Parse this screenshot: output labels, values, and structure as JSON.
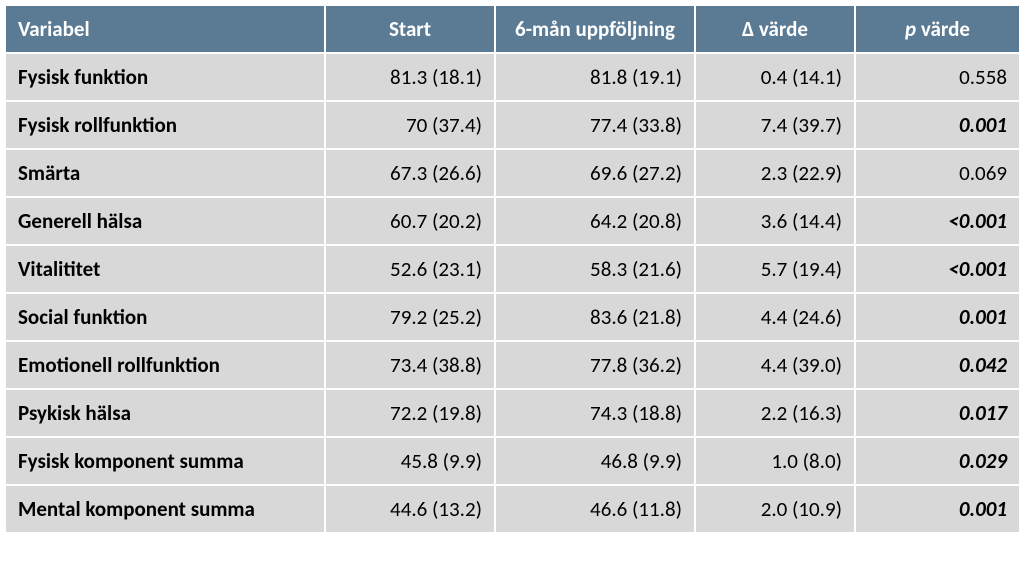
{
  "table": {
    "headers": {
      "variable": "Variabel",
      "start": "Start",
      "followup": "6-mån uppföljning",
      "delta": "Δ värde",
      "pvalue_prefix": "p",
      "pvalue_suffix": " värde"
    },
    "rows": [
      {
        "variable": "Fysisk funktion",
        "start": "81.3 (18.1)",
        "followup": "81.8 (19.1)",
        "delta": "0.4 (14.1)",
        "pvalue": "0.558",
        "pbold": false
      },
      {
        "variable": "Fysisk rollfunktion",
        "start": "70 (37.4)",
        "followup": "77.4 (33.8)",
        "delta": "7.4 (39.7)",
        "pvalue": "0.001",
        "pbold": true
      },
      {
        "variable": "Smärta",
        "start": "67.3 (26.6)",
        "followup": "69.6 (27.2)",
        "delta": "2.3 (22.9)",
        "pvalue": "0.069",
        "pbold": false
      },
      {
        "variable": "Generell hälsa",
        "start": "60.7 (20.2)",
        "followup": "64.2 (20.8)",
        "delta": "3.6 (14.4)",
        "pvalue": "<0.001",
        "pbold": true
      },
      {
        "variable": "Vitalititet",
        "start": "52.6 (23.1)",
        "followup": "58.3 (21.6)",
        "delta": "5.7 (19.4)",
        "pvalue": "<0.001",
        "pbold": true
      },
      {
        "variable": "Social funktion",
        "start": "79.2 (25.2)",
        "followup": "83.6 (21.8)",
        "delta": "4.4 (24.6)",
        "pvalue": "0.001",
        "pbold": true
      },
      {
        "variable": "Emotionell rollfunktion",
        "start": "73.4 (38.8)",
        "followup": "77.8 (36.2)",
        "delta": "4.4 (39.0)",
        "pvalue": "0.042",
        "pbold": true
      },
      {
        "variable": "Psykisk hälsa",
        "start": "72.2 (19.8)",
        "followup": "74.3 (18.8)",
        "delta": "2.2 (16.3)",
        "pvalue": "0.017",
        "pbold": true
      },
      {
        "variable": "Fysisk komponent summa",
        "start": "45.8 (9.9)",
        "followup": "46.8 (9.9)",
        "delta": "1.0 (8.0)",
        "pvalue": "0.029",
        "pbold": true
      },
      {
        "variable": "Mental komponent summa",
        "start": "44.6 (13.2)",
        "followup": "46.6 (11.8)",
        "delta": "2.0 (10.9)",
        "pvalue": "0.001",
        "pbold": true
      }
    ],
    "colors": {
      "header_bg": "#5b7b95",
      "header_text": "#ffffff",
      "cell_bg": "#d8d8d8",
      "cell_text": "#000000",
      "border": "#ffffff"
    }
  }
}
